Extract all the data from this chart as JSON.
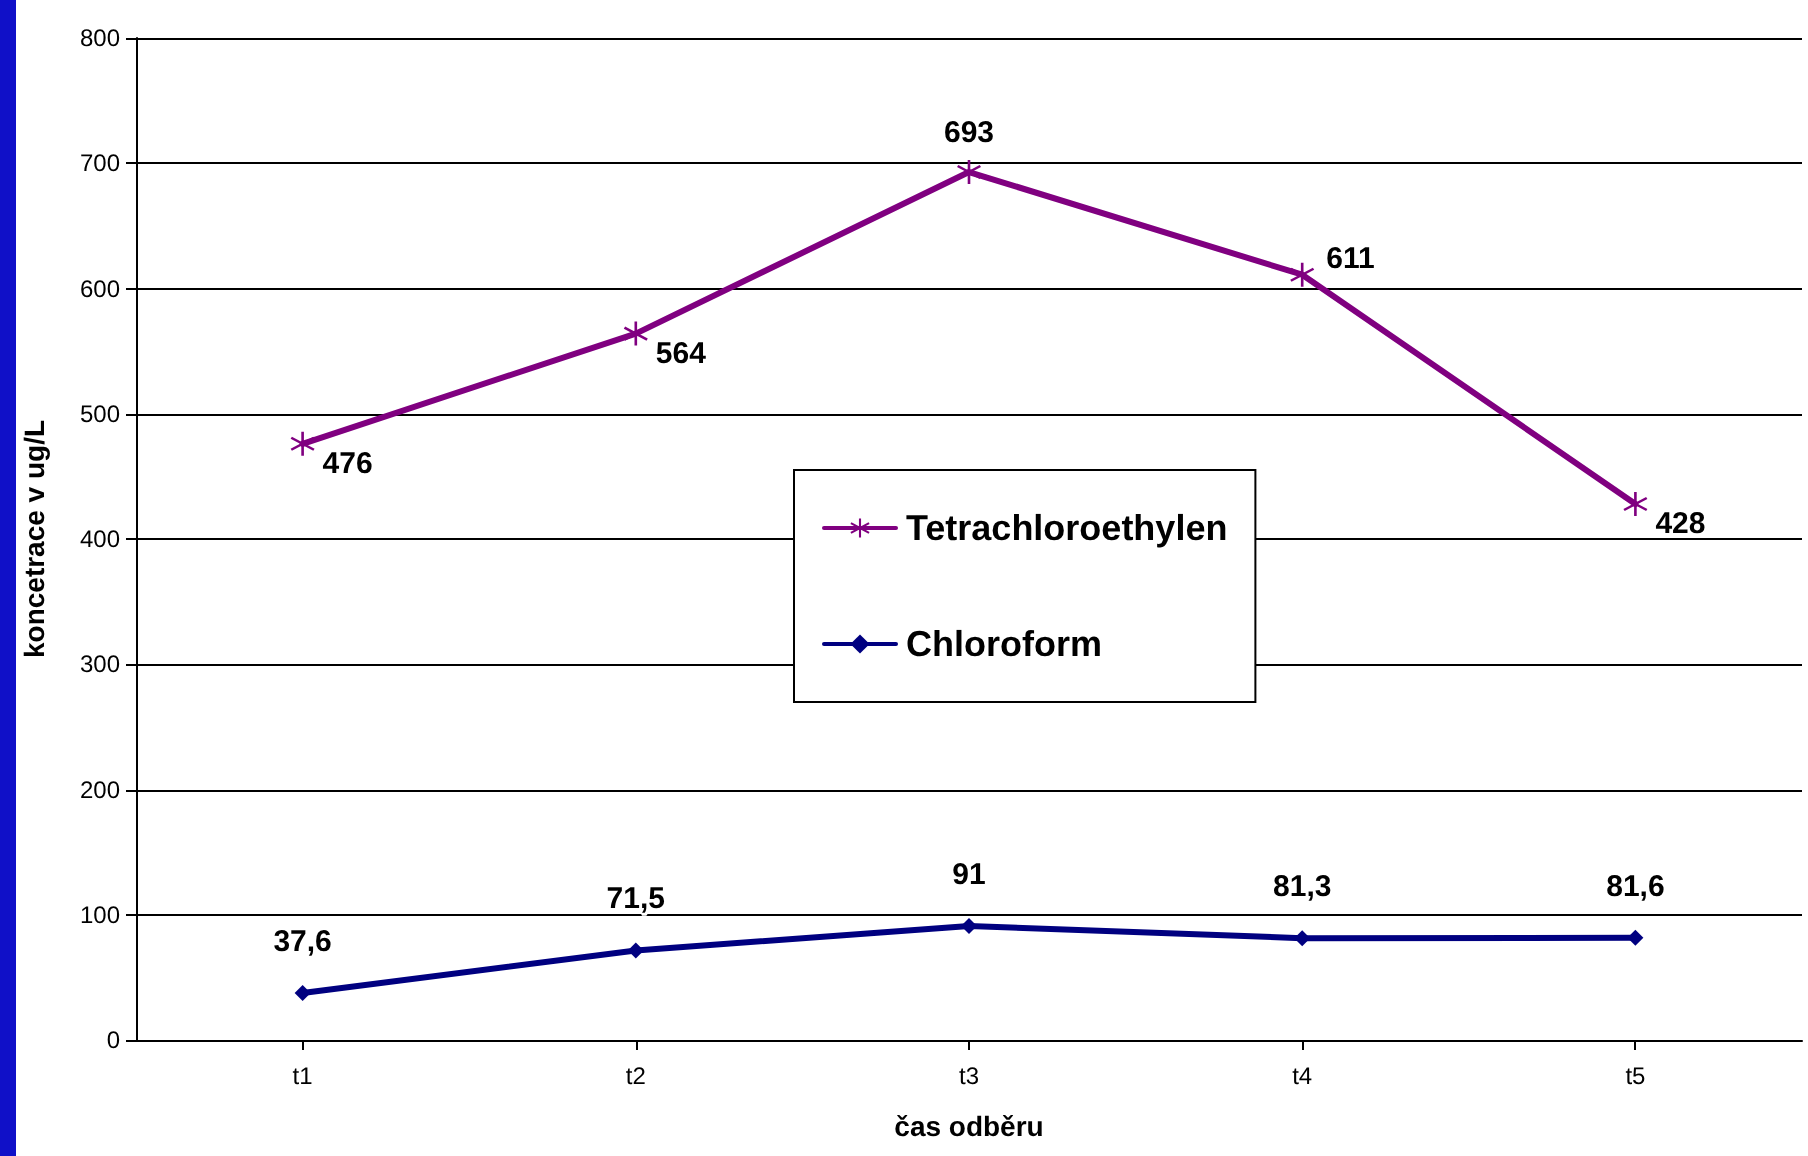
{
  "chart_data": {
    "type": "line",
    "xlabel": "čas odběru",
    "ylabel": "koncetrace v ug/L",
    "categories": [
      "t1",
      "t2",
      "t3",
      "t4",
      "t5"
    ],
    "series": [
      {
        "name": "Tetrachloroethylen",
        "color": "#800080",
        "marker": "cross",
        "values": [
          476,
          564,
          693,
          611,
          428
        ],
        "value_labels": [
          "476",
          "564",
          "693",
          "611",
          "428"
        ]
      },
      {
        "name": "Chloroform",
        "color": "#000080",
        "marker": "diamond",
        "values": [
          37.6,
          71.5,
          91,
          81.3,
          81.6
        ],
        "value_labels": [
          "37,6",
          "71,5",
          "91",
          "81,3",
          "81,6"
        ]
      }
    ],
    "ylim": [
      0,
      800
    ],
    "yticks": [
      0,
      100,
      200,
      300,
      400,
      500,
      600,
      700,
      800
    ],
    "grid": "y",
    "legend": "center",
    "line_style": "solid"
  }
}
